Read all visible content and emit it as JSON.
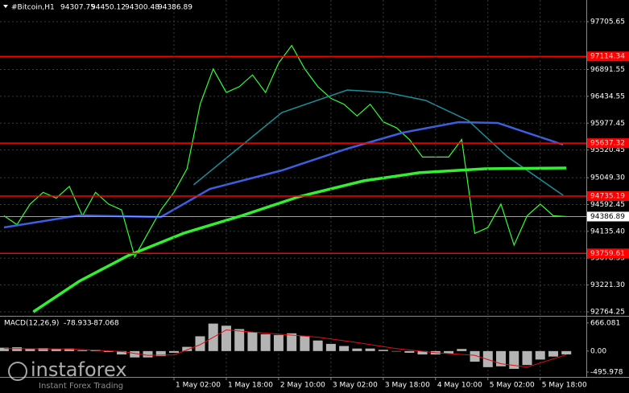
{
  "chart_data": [
    {
      "type": "line",
      "title": "#Bitcoin,H1",
      "ohlc": [
        94307.75,
        94450.12,
        94300.48,
        94386.89
      ],
      "xlim": [
        -1.2,
        178.1
      ],
      "ylim": [
        92696,
        98075
      ],
      "yticks": [
        97705.65,
        96891.55,
        96434.55,
        95977.45,
        95520.45,
        {
          "value": 95049.3,
          "label": "95049.30"
        },
        94592.45,
        {
          "value": 94135.4,
          "label": "94135.40"
        },
        93678.35,
        {
          "value": 93221.3,
          "label": "93221.30"
        },
        92764.25
      ],
      "grid": true,
      "levels": [
        {
          "value": 97114.34,
          "color": "#ff0000"
        },
        {
          "value": 95637.32,
          "color": "#ff0000"
        },
        {
          "value": 94735.19,
          "color": "#ff0000"
        },
        {
          "value": 93759.61,
          "color": "#ff0000"
        }
      ],
      "current_price": 94386.89,
      "series": [
        {
          "color": "#33ff33",
          "x": [
            0,
            4,
            8,
            12,
            16,
            20,
            24,
            28,
            32,
            36,
            40,
            44,
            48,
            52,
            56,
            60,
            64,
            68,
            72,
            76,
            80,
            84,
            88,
            92,
            96,
            100,
            104,
            108,
            112,
            116,
            120,
            124,
            128,
            132,
            136,
            140,
            144,
            148,
            152,
            156,
            160,
            164,
            168,
            172
          ],
          "values": [
            94400,
            94250,
            94600,
            94800,
            94700,
            94900,
            94400,
            94800,
            94600,
            94500,
            93700,
            94100,
            94500,
            94800,
            95200,
            96300,
            96900,
            96500,
            96600,
            96800,
            96500,
            97000,
            97300,
            96900,
            96600,
            96400,
            96300,
            96100,
            96300,
            96000,
            95900,
            95700,
            95400,
            95400,
            95400,
            95700,
            94100,
            94200,
            94600,
            93900,
            94400,
            94600,
            94400,
            94386.89
          ]
        },
        {
          "color": "#3a5fe0",
          "x": [
            0,
            23,
            48,
            63,
            85,
            105,
            122,
            139,
            151,
            171
          ],
          "values": [
            94201,
            94407,
            94380,
            94859,
            95173,
            95543,
            95817,
            95995,
            95981,
            95612
          ]
        },
        {
          "color": "#1a8f9a",
          "x": [
            58,
            73,
            85,
            105,
            117,
            129,
            142,
            154,
            171
          ],
          "values": [
            94927,
            95611,
            96159,
            96542,
            96501,
            96364,
            96022,
            95406,
            94749
          ]
        },
        {
          "color": "#33ee33",
          "x": [
            9,
            23,
            38,
            55,
            73,
            90,
            110,
            127,
            147,
            172
          ],
          "values": [
            92764,
            93284,
            93722,
            94105,
            94407,
            94722,
            94996,
            95133,
            95201,
            95214
          ]
        }
      ]
    },
    {
      "type": "macd",
      "title": "MACD(12,26,9)",
      "readout": [
        -78.933,
        -87.068
      ],
      "xlim": [
        -1.2,
        178.1
      ],
      "ylim": [
        -592,
        795
      ],
      "yticks": [
        666.081,
        {
          "value": 0,
          "label": "0.00"
        },
        -495.978
      ],
      "xticks": [
        {
          "value": 52,
          "label": "1 May 02:00"
        },
        {
          "value": 68,
          "label": "1 May 18:00"
        },
        {
          "value": 84,
          "label": "2 May 10:00"
        },
        {
          "value": 100,
          "label": "3 May 02:00"
        },
        {
          "value": 116,
          "label": "3 May 18:00"
        },
        {
          "value": 132,
          "label": "4 May 10:00"
        },
        {
          "value": 148,
          "label": "5 May 02:00"
        },
        {
          "value": 164,
          "label": "5 May 18:00"
        }
      ],
      "series": [
        {
          "color": "#b4b4b4",
          "x": [
            0,
            4,
            8,
            12,
            16,
            20,
            24,
            28,
            32,
            36,
            40,
            44,
            48,
            52,
            56,
            60,
            64,
            68,
            72,
            76,
            80,
            84,
            88,
            92,
            96,
            100,
            104,
            108,
            112,
            116,
            120,
            124,
            128,
            132,
            136,
            140,
            144,
            148,
            152,
            156,
            160,
            164,
            168,
            172
          ],
          "values": [
            80,
            90,
            60,
            70,
            50,
            60,
            20,
            30,
            -20,
            -80,
            -150,
            -150,
            -120,
            -40,
            100,
            350,
            650,
            600,
            520,
            450,
            400,
            380,
            420,
            360,
            250,
            170,
            120,
            60,
            60,
            30,
            -10,
            -40,
            -80,
            -80,
            -60,
            50,
            -250,
            -380,
            -360,
            -420,
            -330,
            -200,
            -130,
            -78.933
          ]
        },
        {
          "color": "#e01010",
          "x": [
            0,
            20,
            36,
            44,
            52,
            60,
            68,
            76,
            84,
            96,
            108,
            120,
            132,
            144,
            152,
            160,
            172
          ],
          "values": [
            60,
            50,
            -10,
            -100,
            -90,
            150,
            500,
            450,
            400,
            330,
            200,
            60,
            -40,
            -100,
            -300,
            -380,
            -87.068
          ]
        }
      ]
    }
  ],
  "watermark": {
    "brand": "instaforex",
    "tagline": "Instant Forex Trading"
  }
}
